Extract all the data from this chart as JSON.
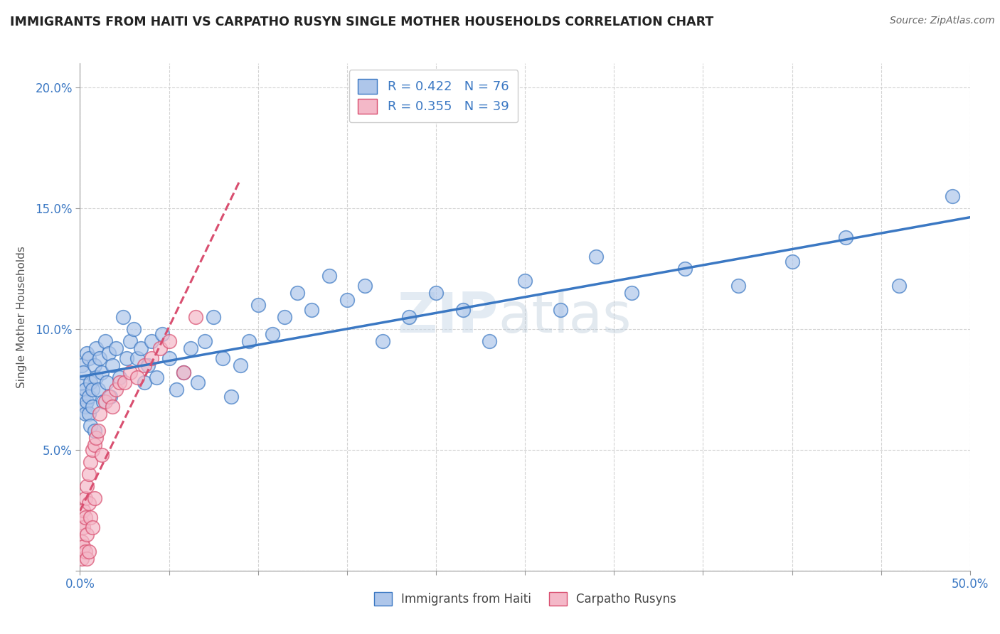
{
  "title": "IMMIGRANTS FROM HAITI VS CARPATHO RUSYN SINGLE MOTHER HOUSEHOLDS CORRELATION CHART",
  "source": "Source: ZipAtlas.com",
  "xlabel": "",
  "ylabel": "Single Mother Households",
  "xlim": [
    0.0,
    0.5
  ],
  "ylim": [
    0.0,
    0.21
  ],
  "xticks": [
    0.0,
    0.05,
    0.1,
    0.15,
    0.2,
    0.25,
    0.3,
    0.35,
    0.4,
    0.45,
    0.5
  ],
  "yticks": [
    0.0,
    0.05,
    0.1,
    0.15,
    0.2
  ],
  "haiti_R": 0.422,
  "haiti_N": 76,
  "rusyn_R": 0.355,
  "rusyn_N": 39,
  "haiti_color": "#aec6ea",
  "rusyn_color": "#f4b8c8",
  "haiti_line_color": "#3b78c3",
  "rusyn_line_color": "#d94f70",
  "background_color": "#ffffff",
  "grid_color": "#c8c8c8",
  "haiti_x": [
    0.001,
    0.001,
    0.002,
    0.002,
    0.003,
    0.003,
    0.003,
    0.004,
    0.004,
    0.005,
    0.005,
    0.005,
    0.006,
    0.006,
    0.007,
    0.007,
    0.008,
    0.008,
    0.009,
    0.009,
    0.01,
    0.011,
    0.012,
    0.013,
    0.014,
    0.015,
    0.016,
    0.017,
    0.018,
    0.02,
    0.022,
    0.024,
    0.026,
    0.028,
    0.03,
    0.032,
    0.034,
    0.036,
    0.038,
    0.04,
    0.043,
    0.046,
    0.05,
    0.054,
    0.058,
    0.062,
    0.066,
    0.07,
    0.075,
    0.08,
    0.085,
    0.09,
    0.095,
    0.1,
    0.108,
    0.115,
    0.122,
    0.13,
    0.14,
    0.15,
    0.16,
    0.17,
    0.185,
    0.2,
    0.215,
    0.23,
    0.25,
    0.27,
    0.29,
    0.31,
    0.34,
    0.37,
    0.4,
    0.43,
    0.46,
    0.49
  ],
  "haiti_y": [
    0.085,
    0.078,
    0.082,
    0.072,
    0.068,
    0.075,
    0.065,
    0.09,
    0.07,
    0.088,
    0.072,
    0.065,
    0.078,
    0.06,
    0.075,
    0.068,
    0.085,
    0.058,
    0.092,
    0.08,
    0.075,
    0.088,
    0.082,
    0.07,
    0.095,
    0.078,
    0.09,
    0.072,
    0.085,
    0.092,
    0.08,
    0.105,
    0.088,
    0.095,
    0.1,
    0.088,
    0.092,
    0.078,
    0.085,
    0.095,
    0.08,
    0.098,
    0.088,
    0.075,
    0.082,
    0.092,
    0.078,
    0.095,
    0.105,
    0.088,
    0.072,
    0.085,
    0.095,
    0.11,
    0.098,
    0.105,
    0.115,
    0.108,
    0.122,
    0.112,
    0.118,
    0.095,
    0.105,
    0.115,
    0.108,
    0.095,
    0.12,
    0.108,
    0.13,
    0.115,
    0.125,
    0.118,
    0.128,
    0.138,
    0.118,
    0.155
  ],
  "rusyn_x": [
    0.001,
    0.001,
    0.001,
    0.002,
    0.002,
    0.002,
    0.003,
    0.003,
    0.003,
    0.004,
    0.004,
    0.004,
    0.005,
    0.005,
    0.005,
    0.006,
    0.006,
    0.007,
    0.007,
    0.008,
    0.008,
    0.009,
    0.01,
    0.011,
    0.012,
    0.014,
    0.016,
    0.018,
    0.02,
    0.022,
    0.025,
    0.028,
    0.032,
    0.036,
    0.04,
    0.045,
    0.05,
    0.058,
    0.065
  ],
  "rusyn_y": [
    0.02,
    0.012,
    0.005,
    0.025,
    0.018,
    0.01,
    0.03,
    0.022,
    0.008,
    0.035,
    0.015,
    0.005,
    0.04,
    0.028,
    0.008,
    0.045,
    0.022,
    0.05,
    0.018,
    0.052,
    0.03,
    0.055,
    0.058,
    0.065,
    0.048,
    0.07,
    0.072,
    0.068,
    0.075,
    0.078,
    0.078,
    0.082,
    0.08,
    0.085,
    0.088,
    0.092,
    0.095,
    0.082,
    0.105
  ],
  "haiti_line_start_x": 0.0,
  "haiti_line_end_x": 0.5,
  "rusyn_line_start_x": 0.0,
  "rusyn_line_end_x": 0.09
}
